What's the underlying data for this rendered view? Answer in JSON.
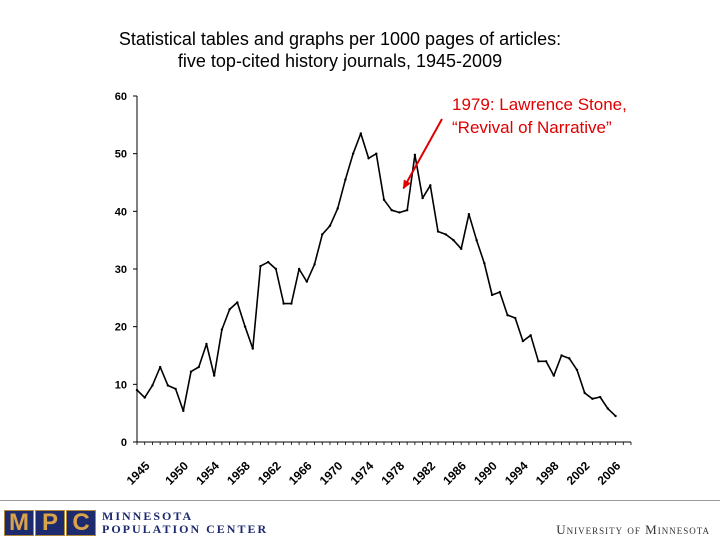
{
  "slide": {
    "title_line1": "Statistical tables and graphs per 1000 pages of articles:",
    "title_line2": "five top-cited history journals, 1945-2009"
  },
  "annotation": {
    "line1": "1979: Lawrence Stone,",
    "line2": "“Revival of Narrative”",
    "color": "#e00000",
    "target_year": 1979,
    "target_value": 44.5
  },
  "footer": {
    "logo_letters": [
      "M",
      "P",
      "C"
    ],
    "logo_line1": "MINNESOTA",
    "logo_line2": "POPULATION CENTER",
    "university": "University of Minnesota",
    "logo_color": "#1e2a6e",
    "logo_accent": "#d9a34a"
  },
  "chart_data": {
    "type": "line",
    "title": "Statistical tables and graphs per 1000 pages of articles: five top-cited history journals, 1945-2009",
    "xlabel": "",
    "ylabel": "",
    "xlim": [
      1945,
      2009
    ],
    "ylim": [
      0,
      60
    ],
    "y_ticks": [
      0,
      10,
      20,
      30,
      40,
      50,
      60
    ],
    "x_ticks": [
      1945,
      1950,
      1954,
      1958,
      1962,
      1966,
      1970,
      1974,
      1978,
      1982,
      1986,
      1990,
      1994,
      1998,
      2002,
      2006
    ],
    "grid": false,
    "line_color": "#000000",
    "series": [
      {
        "x": [
          1945,
          1946,
          1947,
          1948,
          1949,
          1950,
          1951,
          1952,
          1953,
          1954,
          1955,
          1956,
          1957,
          1958,
          1959,
          1960,
          1961,
          1962,
          1963,
          1964,
          1965,
          1966,
          1967,
          1968,
          1969,
          1970,
          1971,
          1972,
          1973,
          1974,
          1975,
          1976,
          1977,
          1978,
          1979,
          1980,
          1981,
          1982,
          1983,
          1984,
          1985,
          1986,
          1987,
          1988,
          1989,
          1990,
          1991,
          1992,
          1993,
          1994,
          1995,
          1996,
          1997,
          1998,
          1999,
          2000,
          2001,
          2002,
          2003,
          2004,
          2005,
          2006,
          2007,
          2008,
          2009
        ],
        "values": [
          9.0,
          7.7,
          9.8,
          13.0,
          9.8,
          9.2,
          5.4,
          12.2,
          13.0,
          17.0,
          11.5,
          19.5,
          23.0,
          24.2,
          20.0,
          16.2,
          30.5,
          31.2,
          30.0,
          24.0,
          24.0,
          30.0,
          27.8,
          30.8,
          36.0,
          37.5,
          40.5,
          45.5,
          50.0,
          53.5,
          49.2,
          50.0,
          42.0,
          40.2,
          39.8,
          40.2,
          49.8,
          42.3,
          44.5,
          36.5,
          36.0,
          35.0,
          33.5,
          39.5,
          35.0,
          31.0,
          25.5,
          26.0,
          22.0,
          21.5,
          17.5,
          18.5,
          14.0,
          14.0,
          11.5,
          15.0,
          14.5,
          12.5,
          8.5,
          7.5,
          7.8,
          5.8,
          4.5,
          null,
          null
        ]
      }
    ]
  }
}
